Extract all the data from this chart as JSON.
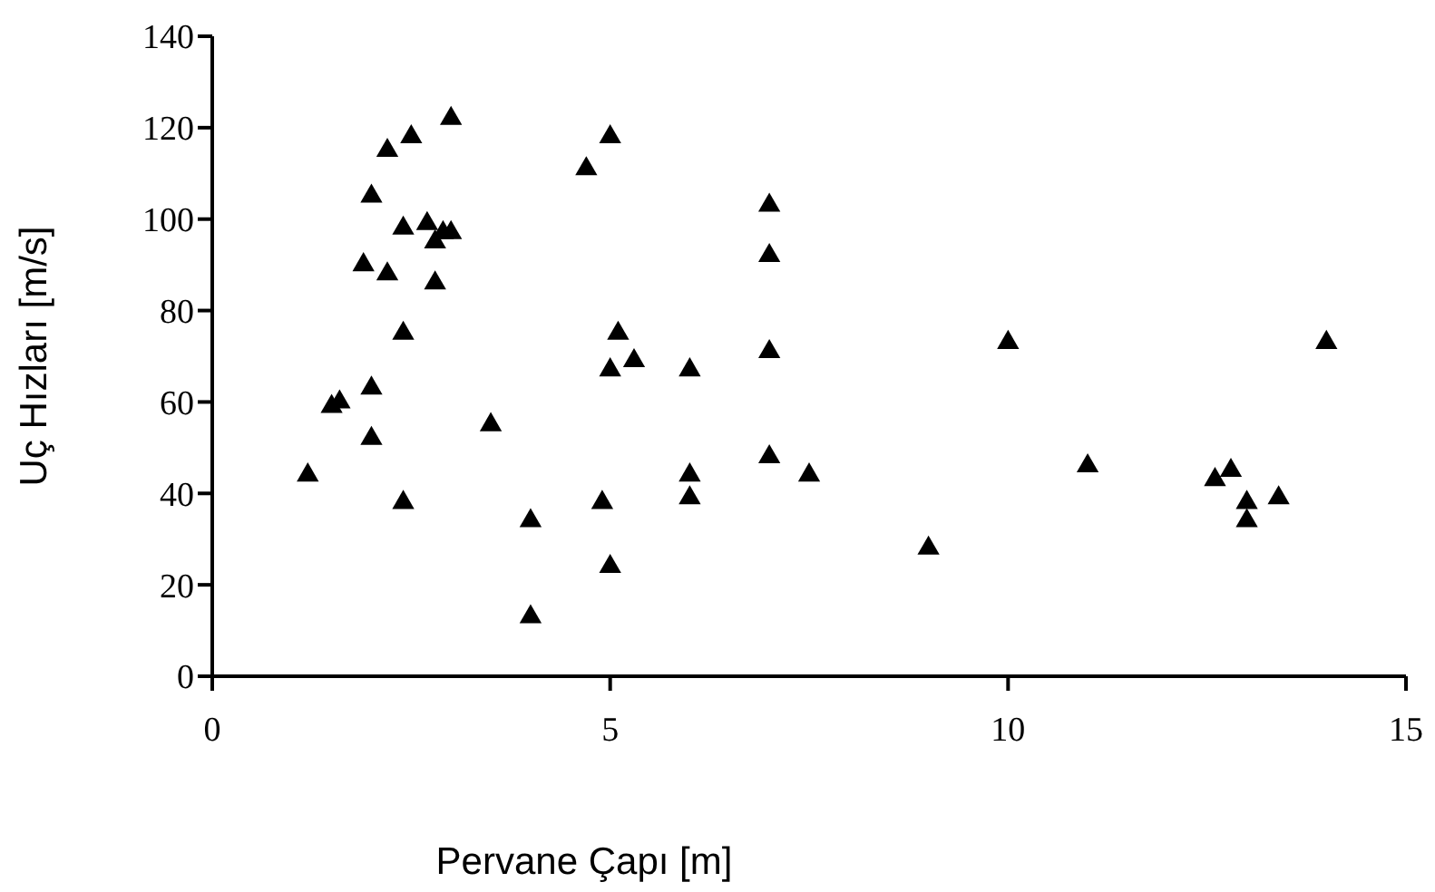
{
  "chart_data": {
    "type": "scatter",
    "xlabel": "Pervane Çapı [m]",
    "ylabel": "Uç Hızları [m/s]",
    "xlim": [
      0,
      15
    ],
    "xticks": [
      0,
      5,
      10,
      15
    ],
    "ylim": [
      0,
      140
    ],
    "yticks": [
      0,
      20,
      40,
      60,
      80,
      100,
      120,
      140
    ],
    "grid": false,
    "legend": false,
    "marker": "triangle",
    "series": [
      {
        "color": "#000000",
        "x": [
          1.2,
          1.5,
          1.6,
          2.0,
          2.0,
          2.4,
          1.9,
          2.0,
          2.2,
          2.5,
          3.0,
          2.2,
          2.4,
          2.4,
          2.7,
          2.8,
          2.8,
          2.9,
          3.0,
          3.5,
          4.0,
          4.0,
          4.7,
          5.0,
          4.9,
          5.0,
          5.0,
          5.1,
          5.3,
          6.0,
          6.0,
          6.0,
          7.0,
          7.0,
          7.0,
          7.0,
          7.5,
          9.0,
          10.0,
          11.0,
          12.6,
          12.8,
          13.0,
          13.0,
          13.4,
          14.0
        ],
        "values": [
          44,
          59,
          60,
          63,
          52,
          38,
          90,
          105,
          115,
          118,
          122,
          88,
          98,
          75,
          99,
          95,
          86,
          97,
          97,
          55,
          34,
          13,
          111,
          118,
          38,
          24,
          67,
          75,
          69,
          67,
          44,
          39,
          103,
          92,
          71,
          48,
          44,
          28,
          73,
          46,
          43,
          45,
          38,
          34,
          39,
          73
        ]
      }
    ]
  }
}
